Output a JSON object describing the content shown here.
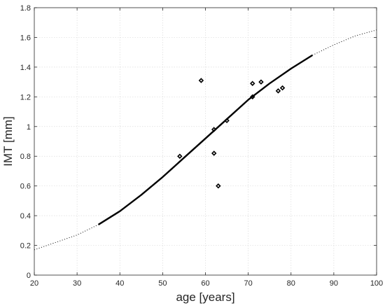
{
  "chart_data": {
    "type": "scatter",
    "xlabel": "age [years]",
    "ylabel": "IMT [mm]",
    "xlim": [
      20,
      100
    ],
    "ylim": [
      0,
      1.8
    ],
    "x_ticks": [
      20,
      30,
      40,
      50,
      60,
      70,
      80,
      90,
      100
    ],
    "y_ticks": [
      0,
      0.2,
      0.4,
      0.6,
      0.8,
      1,
      1.2,
      1.4,
      1.6,
      1.8
    ],
    "grid": true,
    "points": [
      {
        "x": 54,
        "y": 0.8
      },
      {
        "x": 59,
        "y": 1.31
      },
      {
        "x": 62,
        "y": 0.98
      },
      {
        "x": 62,
        "y": 0.82
      },
      {
        "x": 63,
        "y": 0.6
      },
      {
        "x": 65,
        "y": 1.04
      },
      {
        "x": 71,
        "y": 1.29
      },
      {
        "x": 71,
        "y": 1.2
      },
      {
        "x": 73,
        "y": 1.3
      },
      {
        "x": 77,
        "y": 1.24
      },
      {
        "x": 78,
        "y": 1.26
      }
    ],
    "fit_curve": {
      "style_solid_range": [
        35,
        85
      ],
      "style_dotted_range": [
        [
          20,
          35
        ],
        [
          85,
          100
        ]
      ],
      "x": [
        20,
        25,
        30,
        35,
        40,
        45,
        50,
        55,
        60,
        65,
        70,
        75,
        80,
        85,
        90,
        95,
        100
      ],
      "y": [
        0.17,
        0.22,
        0.27,
        0.34,
        0.43,
        0.54,
        0.66,
        0.79,
        0.92,
        1.05,
        1.18,
        1.29,
        1.39,
        1.48,
        1.55,
        1.61,
        1.65
      ]
    },
    "colors": {
      "marker": "#000000",
      "curve": "#000000",
      "axis": "#262626",
      "grid": "#dcdcdc"
    }
  }
}
